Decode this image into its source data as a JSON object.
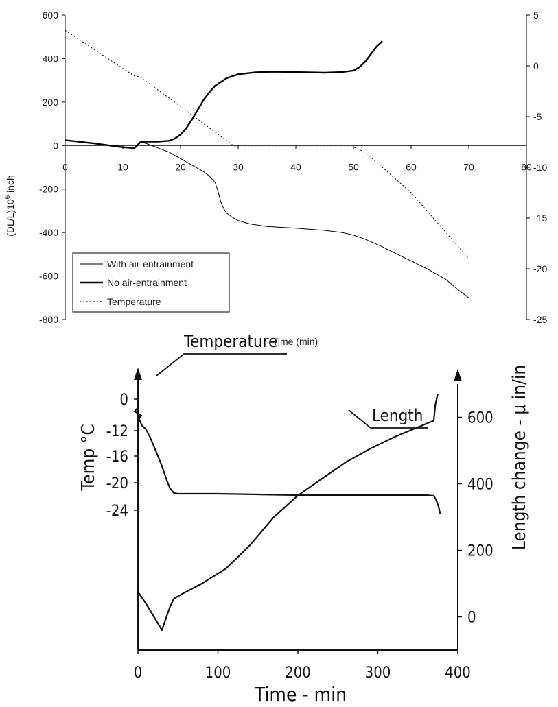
{
  "chart_data": [
    {
      "type": "line",
      "title": "",
      "xlabel": "Time (min)",
      "ylabel": "(DL/L)10",
      "ylabel_sup": "6",
      "ylabel_tail": " inch",
      "xlim": [
        0,
        80
      ],
      "ylim": [
        -800,
        600
      ],
      "y2lim": [
        -25,
        5
      ],
      "x_ticks": [
        "0",
        "10",
        "20",
        "30",
        "40",
        "50",
        "60",
        "70",
        "80"
      ],
      "y_ticks": [
        "600",
        "400",
        "200",
        "0",
        "-200",
        "-400",
        "-600",
        "-800"
      ],
      "y2_ticks": [
        "5",
        "0",
        "-5",
        "-10",
        "-15",
        "-20",
        "-25"
      ],
      "legend_position": "bottom-left",
      "series": [
        {
          "name": "With air-entrainment",
          "axis": "left",
          "style": "thin",
          "color": "#000000",
          "x": [
            0,
            5,
            10,
            12,
            12.5,
            13,
            14,
            16,
            18,
            20,
            22,
            24,
            25,
            26,
            26.5,
            27,
            27.5,
            28,
            29,
            30,
            32,
            35,
            40,
            45,
            48,
            50,
            52,
            55,
            58,
            60,
            63,
            66,
            68,
            70
          ],
          "values": [
            25,
            10,
            -8,
            -12,
            5,
            15,
            10,
            -10,
            -30,
            -60,
            -90,
            -120,
            -140,
            -170,
            -210,
            -260,
            -290,
            -310,
            -330,
            -345,
            -360,
            -372,
            -380,
            -390,
            -400,
            -412,
            -430,
            -465,
            -505,
            -530,
            -570,
            -615,
            -660,
            -700
          ]
        },
        {
          "name": "No air-entrainment",
          "axis": "left",
          "style": "thick",
          "color": "#000000",
          "x": [
            0,
            5,
            10,
            12,
            12.5,
            13,
            14,
            16,
            18,
            19,
            20,
            21,
            22,
            23,
            24,
            25,
            26,
            28,
            30,
            33,
            36,
            40,
            45,
            48,
            50,
            51,
            52,
            53,
            54,
            55
          ],
          "values": [
            25,
            10,
            -8,
            -12,
            0,
            15,
            18,
            18,
            22,
            32,
            50,
            80,
            120,
            165,
            210,
            245,
            275,
            310,
            328,
            337,
            340,
            338,
            335,
            338,
            345,
            360,
            385,
            420,
            455,
            480
          ]
        },
        {
          "name": "Temperature",
          "axis": "right",
          "style": "dotted",
          "color": "#000000",
          "x": [
            0,
            12,
            13,
            20,
            29.5,
            50,
            52,
            60,
            70
          ],
          "values": [
            3.5,
            -1,
            -1.1,
            -4,
            -8,
            -8,
            -8.5,
            -12.5,
            -19
          ]
        }
      ]
    },
    {
      "type": "line",
      "title": "",
      "xlabel": "Time - min",
      "ylabel": "Temp °C",
      "y2label": "Length change - μ in/in",
      "x_ticks": [
        "0",
        "100",
        "200",
        "300",
        "400"
      ],
      "y_ticks": [
        "0",
        "-12",
        "-16",
        "-20",
        "-24"
      ],
      "y2_ticks": [
        "600",
        "400",
        "200",
        "0"
      ],
      "xlim": [
        0,
        400
      ],
      "y2lim": [
        -100,
        700
      ],
      "annotations": [
        "Temperature",
        "Length"
      ],
      "series": [
        {
          "name": "Temperature",
          "axis": "left-nonlinear",
          "x": [
            0,
            2,
            5,
            10,
            15,
            20,
            25,
            30,
            35,
            40,
            45,
            50,
            70,
            100,
            150,
            200,
            250,
            300,
            340,
            360,
            370,
            373,
            376,
            378
          ],
          "values": [
            -4,
            -8,
            -10,
            -11.5,
            -13,
            -14.5,
            -16,
            -17.5,
            -19.3,
            -20.8,
            -21.5,
            -21.6,
            -21.6,
            -21.6,
            -21.7,
            -21.8,
            -21.8,
            -21.8,
            -21.8,
            -21.8,
            -21.9,
            -22.5,
            -23.5,
            -24.5
          ]
        },
        {
          "name": "Length",
          "axis": "right",
          "x": [
            0,
            10,
            20,
            30,
            40,
            45,
            60,
            80,
            110,
            140,
            170,
            200,
            230,
            260,
            290,
            320,
            350,
            370,
            372,
            375
          ],
          "values": [
            75,
            40,
            0,
            -40,
            30,
            55,
            75,
            100,
            145,
            215,
            300,
            365,
            415,
            465,
            505,
            540,
            570,
            590,
            640,
            670
          ]
        }
      ]
    }
  ]
}
